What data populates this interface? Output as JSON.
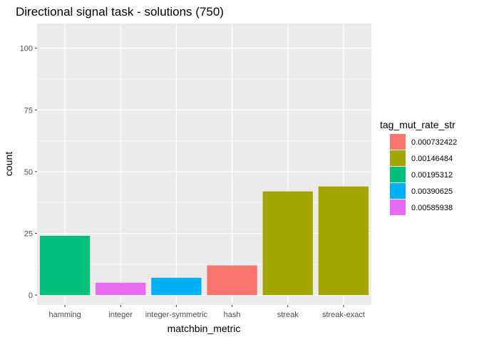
{
  "chart_data": {
    "type": "bar",
    "title": "Directional signal task - solutions (750)",
    "xlabel": "matchbin_metric",
    "ylabel": "count",
    "categories": [
      "hamming",
      "integer",
      "integer-symmetric",
      "hash",
      "streak",
      "streak-exact"
    ],
    "values": [
      24,
      5,
      7,
      12,
      42,
      44
    ],
    "fill_groups": [
      "0.00195312",
      "0.00585938",
      "0.00390625",
      "0.000732422",
      "0.00146484",
      "0.00146484"
    ],
    "ylim": [
      -4,
      110
    ],
    "yticks": [
      0,
      25,
      50,
      75,
      100
    ],
    "grid": true,
    "legend": {
      "title": "tag_mut_rate_str",
      "placement": "right",
      "entries": [
        {
          "label": "0.000732422",
          "color": "#F8766D"
        },
        {
          "label": "0.00146484",
          "color": "#A3A500"
        },
        {
          "label": "0.00195312",
          "color": "#00BF7D"
        },
        {
          "label": "0.00390625",
          "color": "#00B0F6"
        },
        {
          "label": "0.00585938",
          "color": "#E76BF3"
        }
      ]
    },
    "colors": {
      "panel": "#EBEBEB",
      "grid_major": "#FFFFFF",
      "axis_text": "#4D4D4D"
    }
  }
}
